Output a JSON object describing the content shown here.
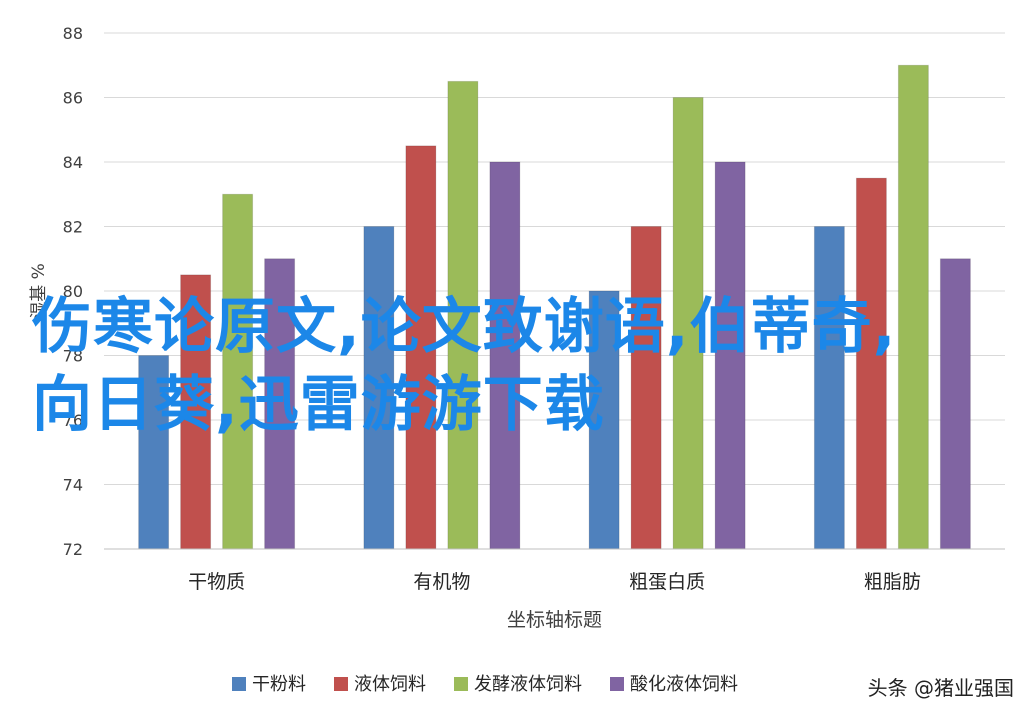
{
  "chart_data": {
    "type": "bar",
    "title": "",
    "xlabel": "坐标轴标题",
    "ylabel": "湿基 %",
    "ylim": [
      72,
      88
    ],
    "yticks": [
      72,
      74,
      76,
      78,
      80,
      82,
      84,
      86,
      88
    ],
    "grid": true,
    "legend_position": "bottom",
    "categories": [
      "干物质",
      "有机物",
      "粗蛋白质",
      "粗脂肪"
    ],
    "series": [
      {
        "name": "干粉料",
        "color": "#4f81bd",
        "values": [
          78,
          82,
          80,
          82
        ]
      },
      {
        "name": "液体饲料",
        "color": "#c0504d",
        "values": [
          80.5,
          84.5,
          82,
          83.5
        ]
      },
      {
        "name": "发酵液体饲料",
        "color": "#9bbb59",
        "values": [
          83,
          86.5,
          86,
          87
        ]
      },
      {
        "name": "酸化液体饲料",
        "color": "#8064a2",
        "values": [
          81,
          84,
          84,
          81
        ]
      }
    ]
  },
  "overlay_text": "伤寒论原文,论文致谢语,伯蒂奇,向日葵,迅雷游游下载",
  "watermark": "头条 @猪业强国"
}
